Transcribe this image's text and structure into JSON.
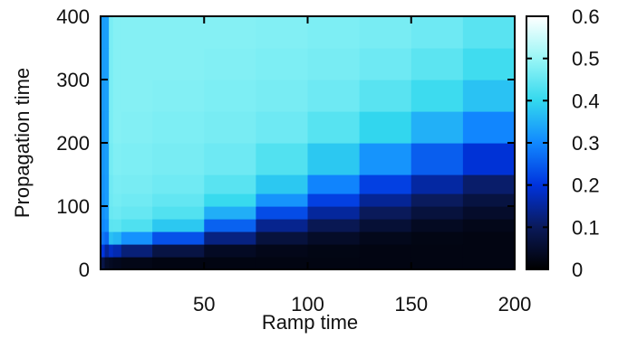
{
  "chart_data": {
    "type": "heatmap",
    "title": "",
    "xlabel": "Ramp time",
    "ylabel": "Propagation time",
    "xlim": [
      0,
      200
    ],
    "ylim": [
      0,
      400
    ],
    "x_ticks": [
      50,
      100,
      150,
      200
    ],
    "y_ticks": [
      0,
      100,
      200,
      300,
      400
    ],
    "colorbar": {
      "range": [
        0,
        0.6
      ],
      "ticks": [
        "0",
        "0.1",
        "0.2",
        "0.3",
        "0.4",
        "0.5",
        "0.6"
      ],
      "colors": [
        "#000000",
        "#0a1a5a",
        "#0033dd",
        "#1188ff",
        "#33d8ee",
        "#99f6f6",
        "#ffffff"
      ]
    },
    "x": [
      0,
      2,
      4,
      6,
      10,
      25,
      50,
      75,
      100,
      125,
      150,
      175,
      200
    ],
    "y": [
      0,
      20,
      40,
      60,
      80,
      100,
      120,
      150,
      200,
      250,
      300,
      350,
      400
    ],
    "z": [
      [
        0.02,
        0.02,
        0.02,
        0.02,
        0.02,
        0.02,
        0.02,
        0.02,
        0.02,
        0.02,
        0.02,
        0.02,
        0.02
      ],
      [
        0.2,
        0.08,
        0.06,
        0.05,
        0.04,
        0.02,
        0.02,
        0.02,
        0.02,
        0.02,
        0.02,
        0.02,
        0.02
      ],
      [
        0.38,
        0.15,
        0.3,
        0.32,
        0.25,
        0.18,
        0.08,
        0.04,
        0.03,
        0.02,
        0.02,
        0.02,
        0.02
      ],
      [
        0.4,
        0.18,
        0.42,
        0.44,
        0.42,
        0.4,
        0.28,
        0.12,
        0.08,
        0.05,
        0.03,
        0.02,
        0.02
      ],
      [
        0.42,
        0.2,
        0.44,
        0.46,
        0.45,
        0.44,
        0.4,
        0.22,
        0.14,
        0.1,
        0.06,
        0.04,
        0.03
      ],
      [
        0.42,
        0.2,
        0.45,
        0.46,
        0.46,
        0.45,
        0.43,
        0.34,
        0.22,
        0.14,
        0.1,
        0.07,
        0.05
      ],
      [
        0.43,
        0.2,
        0.45,
        0.47,
        0.47,
        0.46,
        0.45,
        0.4,
        0.3,
        0.2,
        0.14,
        0.1,
        0.07
      ],
      [
        0.43,
        0.2,
        0.45,
        0.47,
        0.47,
        0.47,
        0.46,
        0.44,
        0.38,
        0.3,
        0.22,
        0.16,
        0.12
      ],
      [
        0.44,
        0.2,
        0.46,
        0.48,
        0.48,
        0.47,
        0.47,
        0.46,
        0.44,
        0.4,
        0.34,
        0.28,
        0.22
      ],
      [
        0.44,
        0.2,
        0.46,
        0.48,
        0.48,
        0.48,
        0.47,
        0.47,
        0.46,
        0.44,
        0.41,
        0.37,
        0.32
      ],
      [
        0.45,
        0.2,
        0.46,
        0.48,
        0.48,
        0.48,
        0.48,
        0.47,
        0.47,
        0.46,
        0.44,
        0.42,
        0.38
      ],
      [
        0.45,
        0.2,
        0.46,
        0.48,
        0.48,
        0.48,
        0.48,
        0.48,
        0.47,
        0.47,
        0.46,
        0.44,
        0.41
      ],
      [
        0.45,
        0.2,
        0.46,
        0.48,
        0.48,
        0.48,
        0.48,
        0.48,
        0.48,
        0.47,
        0.47,
        0.46,
        0.44
      ]
    ]
  }
}
